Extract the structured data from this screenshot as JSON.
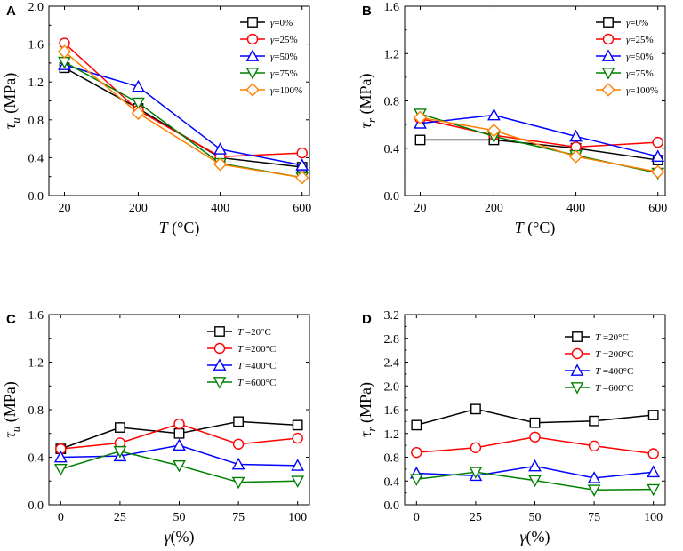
{
  "chart_data": [
    {
      "letter": "A",
      "type": "line",
      "x": [
        20,
        200,
        400,
        600
      ],
      "x_ticks": [
        "20",
        "200",
        "400",
        "600"
      ],
      "y_ticks": [
        "0.0",
        "0.4",
        "0.8",
        "1.2",
        "1.6",
        "2.0"
      ],
      "ylim": [
        0,
        2.0
      ],
      "xlabel_var": "T",
      "xlabel_unit": " (°C)",
      "ylabel_var": "τ",
      "ylabel_sub": "u",
      "ylabel_unit": " (MPa)",
      "series": [
        {
          "name": "γ=0%",
          "var": "γ",
          "rest": "=0%",
          "color": "#000000",
          "marker": "square",
          "values": [
            1.35,
            0.92,
            0.4,
            0.3
          ]
        },
        {
          "name": "γ=25%",
          "var": "γ",
          "rest": "=25%",
          "color": "#ff0000",
          "marker": "circle",
          "values": [
            1.61,
            0.9,
            0.41,
            0.45
          ]
        },
        {
          "name": "γ=50%",
          "var": "γ",
          "rest": "=50%",
          "color": "#0000ff",
          "marker": "triangle-up",
          "values": [
            1.38,
            1.15,
            0.49,
            0.32
          ]
        },
        {
          "name": "γ=75%",
          "var": "γ",
          "rest": "=75%",
          "color": "#008000",
          "marker": "triangle-down",
          "values": [
            1.41,
            0.98,
            0.34,
            0.19
          ]
        },
        {
          "name": "γ=100%",
          "var": "γ",
          "rest": "=100%",
          "color": "#ff8000",
          "marker": "diamond",
          "values": [
            1.52,
            0.87,
            0.33,
            0.19
          ]
        }
      ]
    },
    {
      "letter": "B",
      "type": "line",
      "x": [
        20,
        200,
        400,
        600
      ],
      "x_ticks": [
        "20",
        "200",
        "400",
        "600"
      ],
      "y_ticks": [
        "0.0",
        "0.4",
        "0.8",
        "1.2",
        "1.6"
      ],
      "ylim": [
        0,
        1.6
      ],
      "xlabel_var": "T",
      "xlabel_unit": " (°C)",
      "ylabel_var": "τ",
      "ylabel_sub": "r",
      "ylabel_unit": " (MPa)",
      "series": [
        {
          "name": "γ=0%",
          "var": "γ",
          "rest": "=0%",
          "color": "#000000",
          "marker": "square",
          "values": [
            0.47,
            0.47,
            0.4,
            0.3
          ]
        },
        {
          "name": "γ=25%",
          "var": "γ",
          "rest": "=25%",
          "color": "#ff0000",
          "marker": "circle",
          "values": [
            0.65,
            0.51,
            0.41,
            0.45
          ]
        },
        {
          "name": "γ=50%",
          "var": "γ",
          "rest": "=50%",
          "color": "#0000ff",
          "marker": "triangle-up",
          "values": [
            0.61,
            0.68,
            0.5,
            0.33
          ]
        },
        {
          "name": "γ=75%",
          "var": "γ",
          "rest": "=75%",
          "color": "#008000",
          "marker": "triangle-down",
          "values": [
            0.69,
            0.5,
            0.34,
            0.19
          ]
        },
        {
          "name": "γ=100%",
          "var": "γ",
          "rest": "=100%",
          "color": "#ff8000",
          "marker": "diamond",
          "values": [
            0.66,
            0.55,
            0.33,
            0.2
          ]
        }
      ]
    },
    {
      "letter": "C",
      "type": "line",
      "x": [
        0,
        25,
        50,
        75,
        100
      ],
      "x_ticks": [
        "0",
        "25",
        "50",
        "75",
        "100"
      ],
      "y_ticks": [
        "0.0",
        "0.4",
        "0.8",
        "1.2",
        "1.6"
      ],
      "ylim": [
        0,
        1.6
      ],
      "xlabel_var": "γ",
      "xlabel_unit": "(%)",
      "ylabel_var": "τ",
      "ylabel_sub": "u",
      "ylabel_unit": " (MPa)",
      "series": [
        {
          "name": "T =20°C",
          "var": "T",
          "rest": " =20°C",
          "color": "#000000",
          "marker": "square",
          "values": [
            0.47,
            0.65,
            0.6,
            0.7,
            0.67
          ]
        },
        {
          "name": "T =200°C",
          "var": "T",
          "rest": " =200°C",
          "color": "#ff0000",
          "marker": "circle",
          "values": [
            0.47,
            0.52,
            0.68,
            0.51,
            0.56
          ]
        },
        {
          "name": "T =400°C",
          "var": "T",
          "rest": " =400°C",
          "color": "#0000ff",
          "marker": "triangle-up",
          "values": [
            0.4,
            0.41,
            0.5,
            0.34,
            0.33
          ]
        },
        {
          "name": "T =600°C",
          "var": "T",
          "rest": " =600°C",
          "color": "#008000",
          "marker": "triangle-down",
          "values": [
            0.3,
            0.45,
            0.33,
            0.19,
            0.2
          ]
        }
      ]
    },
    {
      "letter": "D",
      "type": "line",
      "x": [
        0,
        25,
        50,
        75,
        100
      ],
      "x_ticks": [
        "0",
        "25",
        "50",
        "75",
        "100"
      ],
      "y_ticks": [
        "0.0",
        "0.4",
        "0.8",
        "1.2",
        "1.6",
        "2.0",
        "2.4",
        "2.8",
        "3.2"
      ],
      "ylim": [
        0,
        3.2
      ],
      "xlabel_var": "γ",
      "xlabel_unit": "(%)",
      "ylabel_var": "τ",
      "ylabel_sub": "r",
      "ylabel_unit": " (MPa)",
      "series": [
        {
          "name": "T =20°C",
          "var": "T",
          "rest": " =20°C",
          "color": "#000000",
          "marker": "square",
          "values": [
            1.34,
            1.61,
            1.38,
            1.41,
            1.51
          ]
        },
        {
          "name": "T =200°C",
          "var": "T",
          "rest": " =200°C",
          "color": "#ff0000",
          "marker": "circle",
          "values": [
            0.88,
            0.96,
            1.14,
            0.99,
            0.86
          ]
        },
        {
          "name": "T =400°C",
          "var": "T",
          "rest": " =400°C",
          "color": "#0000ff",
          "marker": "triangle-up",
          "values": [
            0.53,
            0.49,
            0.65,
            0.45,
            0.55
          ]
        },
        {
          "name": "T =600°C",
          "var": "T",
          "rest": " =600°C",
          "color": "#008000",
          "marker": "triangle-down",
          "values": [
            0.43,
            0.55,
            0.41,
            0.25,
            0.26
          ]
        }
      ]
    }
  ]
}
